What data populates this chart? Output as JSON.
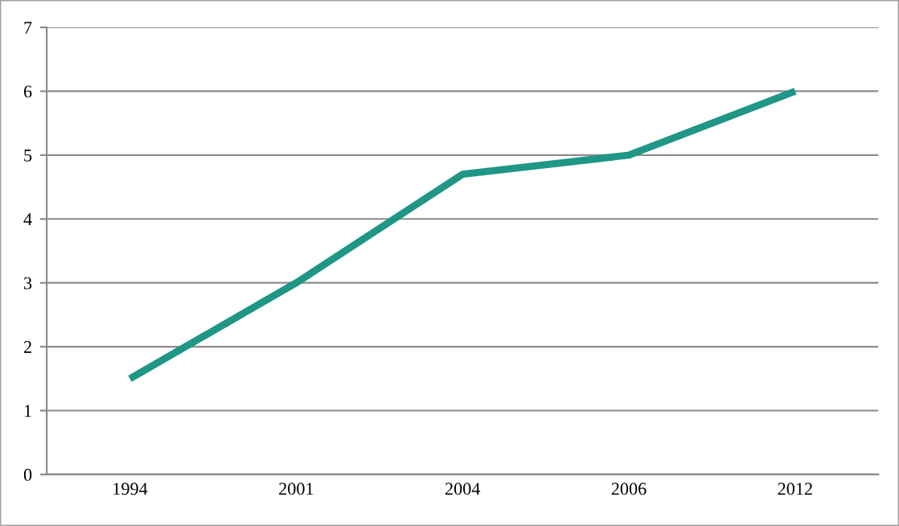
{
  "chart_data": {
    "type": "line",
    "categories": [
      "1994",
      "2001",
      "2004",
      "2006",
      "2012"
    ],
    "series": [
      {
        "color": "#1f9686",
        "values": [
          1.5,
          3,
          4.7,
          5,
          6
        ]
      }
    ],
    "ylim": [
      0,
      7
    ],
    "yticks": [
      0,
      1,
      2,
      3,
      4,
      5,
      6,
      7
    ],
    "grid": "y",
    "legend": false,
    "marker": "none",
    "line_style": "solid"
  }
}
